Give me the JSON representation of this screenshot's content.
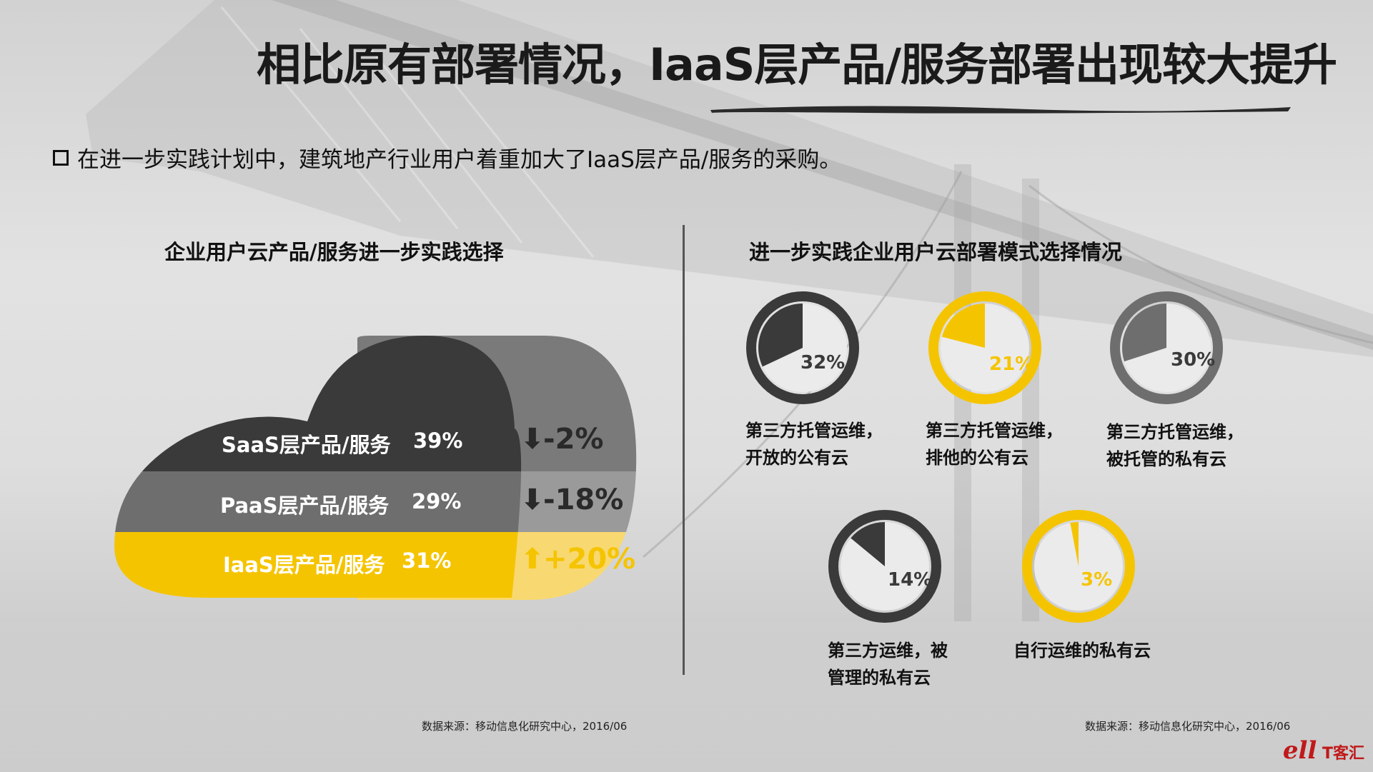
{
  "header": {
    "title": "相比原有部署情况，IaaS层产品/服务部署出现较大提升",
    "subtitle": "在进一步实践计划中，建筑地产行业用户着重加大了IaaS层产品/服务的采购。"
  },
  "left_panel": {
    "title": "企业用户云产品/服务进一步实践选择",
    "source": "数据来源：移动信息化研究中心，2016/06"
  },
  "right_panel": {
    "title": "进一步实践企业用户云部署模式选择情况",
    "source": "数据来源：移动信息化研究中心，2016/06"
  },
  "chart_data": [
    {
      "type": "bar",
      "categories": [
        "SaaS层产品/服务",
        "PaaS层产品/服务",
        "IaaS层产品/服务"
      ],
      "values": [
        39,
        29,
        31
      ],
      "value_labels": [
        "39%",
        "29%",
        "31%"
      ],
      "changes": [
        -2,
        -18,
        20
      ],
      "change_labels": [
        "-2%",
        "-18%",
        "+20%"
      ],
      "change_directions": [
        "down",
        "down",
        "up"
      ],
      "colors": [
        "#3a3a3a",
        "#6e6e6e",
        "#f5c400"
      ]
    },
    {
      "type": "pie",
      "categories": [
        "第三方托管运维，开放的公有云",
        "第三方托管运维，排他的公有云",
        "第三方托管运维，被托管的私有云",
        "第三方运维，被管理的私有云",
        "自行运维的私有云"
      ],
      "values": [
        32,
        21,
        30,
        14,
        3
      ],
      "value_labels": [
        "32%",
        "21%",
        "30%",
        "14%",
        "3%"
      ],
      "label_lines": [
        [
          "第三方托管运维，",
          "开放的公有云"
        ],
        [
          "第三方托管运维，",
          "排他的公有云"
        ],
        [
          "第三方托管运维，",
          "被托管的私有云"
        ],
        [
          "第三方运维，被",
          "管理的私有云"
        ],
        [
          "自行运维的私有云"
        ]
      ],
      "colors": [
        "#3a3a3a",
        "#f5c400",
        "#6e6e6e",
        "#3a3a3a",
        "#f5c400"
      ]
    }
  ],
  "logo_text": "T客汇",
  "colors": {
    "dark": "#3a3a3a",
    "mid": "#6e6e6e",
    "yellow": "#f5c400",
    "light_yellow": "#f8d870",
    "donut_fill": "#ebebeb"
  }
}
